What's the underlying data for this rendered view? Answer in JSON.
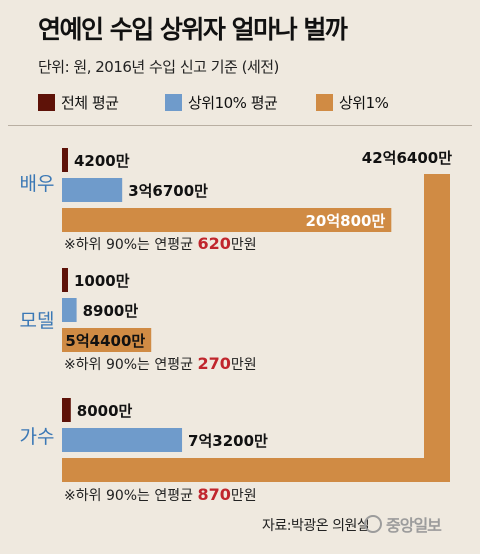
{
  "header": {
    "title": "연예인 수입 상위자 얼마나 벌까",
    "subtitle": "단위: 원, 2016년 수입 신고 기준 (세전)"
  },
  "legend": [
    {
      "label": "전체 평균",
      "color": "#5e1208"
    },
    {
      "label": "상위10% 평균",
      "color": "#6f9bcb"
    },
    {
      "label": "상위1%",
      "color": "#d08b44"
    }
  ],
  "chart_data": {
    "type": "bar",
    "unit": "원",
    "categories": [
      "배우",
      "모델",
      "가수"
    ],
    "series": [
      {
        "name": "전체 평균",
        "values": [
          42000000,
          10000000,
          80000000
        ],
        "labels": [
          "4200만",
          "1000만",
          "8000만"
        ]
      },
      {
        "name": "상위10% 평균",
        "values": [
          367000000,
          89000000,
          732000000
        ],
        "labels": [
          "3억6700만",
          "8900만",
          "7억3200만"
        ]
      },
      {
        "name": "상위1%",
        "values": [
          2008000000,
          544000000,
          4264000000
        ],
        "labels": [
          "20억800만",
          "5억4400만",
          "42억6400만"
        ]
      }
    ],
    "notes": [
      {
        "prefix": "※하위 90%는 연평균 ",
        "value": "620",
        "suffix": "만원"
      },
      {
        "prefix": "※하위 90%는 연평균 ",
        "value": "270",
        "suffix": "만원"
      },
      {
        "prefix": "※하위 90%는 연평균 ",
        "value": "870",
        "suffix": "만원"
      }
    ]
  },
  "footer": {
    "source": "자료:박광온 의원실",
    "logo_text": "중앙일보"
  }
}
